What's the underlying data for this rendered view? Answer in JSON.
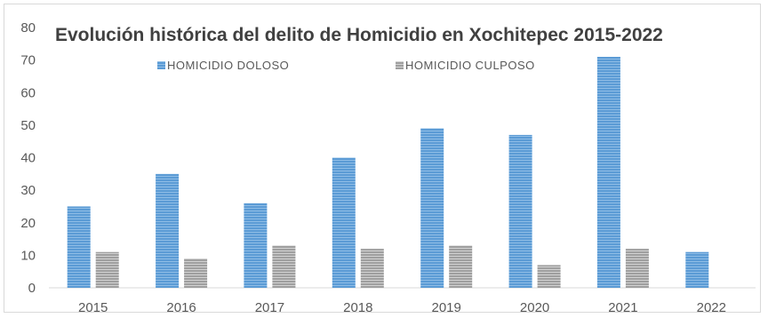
{
  "chart_data": {
    "type": "bar",
    "title": "Evolución histórica del delito de Homicidio en Xochitepec 2015-2022",
    "categories": [
      "2015",
      "2016",
      "2017",
      "2018",
      "2019",
      "2020",
      "2021",
      "2022"
    ],
    "series": [
      {
        "name": "HOMICIDIO DOLOSO",
        "values": [
          25,
          35,
          26,
          40,
          49,
          47,
          71,
          11
        ],
        "color": "#5b9bd5"
      },
      {
        "name": "HOMICIDIO CULPOSO",
        "values": [
          11,
          9,
          13,
          12,
          13,
          7,
          12,
          0
        ],
        "color": "#a5a5a5"
      }
    ],
    "ylim": [
      0,
      80
    ],
    "yticks": [
      0,
      10,
      20,
      30,
      40,
      50,
      60,
      70,
      80
    ],
    "xlabel": "",
    "ylabel": "",
    "grid": false,
    "legend_position": "top"
  }
}
